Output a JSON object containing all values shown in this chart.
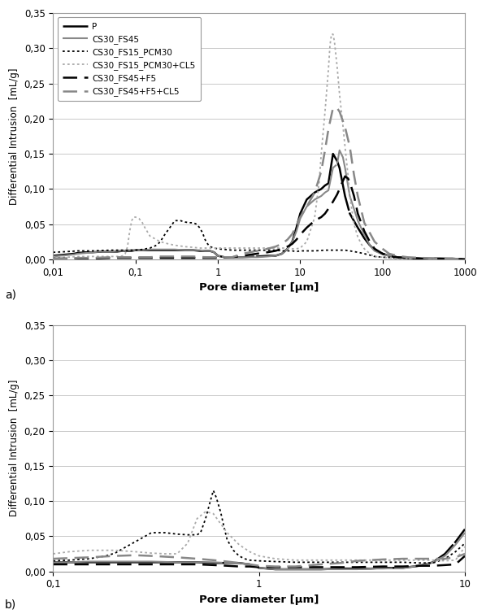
{
  "ylabel": "Differential Intrusion  [mL/g]",
  "xlabel": "Pore diameter [µm]",
  "ylim": [
    0.0,
    0.35
  ],
  "yticks": [
    0.0,
    0.05,
    0.1,
    0.15,
    0.2,
    0.25,
    0.3,
    0.35
  ],
  "ytick_labels": [
    "0,00",
    "0,05",
    "0,10",
    "0,15",
    "0,20",
    "0,25",
    "0,30",
    "0,35"
  ],
  "series_labels": [
    "P",
    "CS30_FS45",
    "CS30_FS15_PCM30",
    "CS30_FS15_PCM30+CL5",
    "CS30_FS45+F5",
    "CS30_FS45+F5+CL5"
  ],
  "plot_a": {
    "xlim": [
      0.01,
      1000
    ],
    "xlabel_ticks": [
      0.01,
      0.1,
      1,
      10,
      100,
      1000
    ],
    "xlabel_tick_labels": [
      "0,01",
      "0,1",
      "1",
      "10",
      "100",
      "1000"
    ],
    "curves": {
      "P": {
        "x": [
          0.01,
          0.012,
          0.015,
          0.018,
          0.02,
          0.025,
          0.03,
          0.04,
          0.05,
          0.06,
          0.07,
          0.08,
          0.09,
          0.1,
          0.12,
          0.15,
          0.2,
          0.25,
          0.3,
          0.4,
          0.5,
          0.6,
          0.7,
          0.8,
          0.9,
          1.0,
          1.2,
          1.5,
          2.0,
          3.0,
          4.0,
          5.0,
          6.0,
          7.0,
          8.0,
          9.0,
          10.0,
          12.0,
          15.0,
          18.0,
          20.0,
          22.0,
          25.0,
          28.0,
          30.0,
          35.0,
          40.0,
          50.0,
          60.0,
          70.0,
          80.0,
          100.0,
          120.0,
          150.0,
          200.0,
          300.0,
          500.0,
          700.0,
          1000.0
        ],
        "y": [
          0.005,
          0.006,
          0.007,
          0.008,
          0.009,
          0.01,
          0.01,
          0.011,
          0.011,
          0.011,
          0.012,
          0.012,
          0.012,
          0.013,
          0.013,
          0.013,
          0.013,
          0.013,
          0.013,
          0.013,
          0.013,
          0.012,
          0.012,
          0.012,
          0.01,
          0.005,
          0.003,
          0.003,
          0.003,
          0.004,
          0.005,
          0.005,
          0.008,
          0.015,
          0.025,
          0.045,
          0.065,
          0.085,
          0.095,
          0.1,
          0.105,
          0.108,
          0.15,
          0.14,
          0.13,
          0.09,
          0.065,
          0.045,
          0.03,
          0.02,
          0.013,
          0.008,
          0.005,
          0.003,
          0.002,
          0.001,
          0.001,
          0.001,
          0.0
        ]
      },
      "CS30_FS45": {
        "x": [
          0.01,
          0.012,
          0.015,
          0.018,
          0.02,
          0.025,
          0.03,
          0.04,
          0.05,
          0.06,
          0.07,
          0.08,
          0.09,
          0.1,
          0.12,
          0.15,
          0.2,
          0.25,
          0.3,
          0.4,
          0.5,
          0.6,
          0.7,
          0.8,
          0.9,
          1.0,
          1.2,
          1.5,
          2.0,
          3.0,
          4.0,
          5.0,
          6.0,
          7.0,
          8.0,
          9.0,
          10.0,
          12.0,
          15.0,
          18.0,
          20.0,
          22.0,
          25.0,
          28.0,
          30.0,
          33.0,
          35.0,
          40.0,
          50.0,
          60.0,
          70.0,
          80.0,
          100.0,
          150.0,
          200.0,
          300.0,
          500.0,
          700.0,
          1000.0
        ],
        "y": [
          0.004,
          0.005,
          0.006,
          0.007,
          0.008,
          0.009,
          0.01,
          0.011,
          0.011,
          0.012,
          0.012,
          0.013,
          0.013,
          0.013,
          0.013,
          0.014,
          0.014,
          0.014,
          0.014,
          0.013,
          0.013,
          0.013,
          0.012,
          0.012,
          0.01,
          0.005,
          0.003,
          0.003,
          0.003,
          0.003,
          0.004,
          0.005,
          0.008,
          0.015,
          0.025,
          0.04,
          0.058,
          0.075,
          0.085,
          0.09,
          0.095,
          0.098,
          0.13,
          0.135,
          0.155,
          0.145,
          0.13,
          0.09,
          0.055,
          0.035,
          0.02,
          0.012,
          0.007,
          0.003,
          0.002,
          0.001,
          0.001,
          0.0,
          0.0
        ]
      },
      "CS30_FS15_PCM30": {
        "x": [
          0.01,
          0.015,
          0.02,
          0.03,
          0.05,
          0.07,
          0.1,
          0.12,
          0.15,
          0.18,
          0.2,
          0.22,
          0.25,
          0.28,
          0.3,
          0.35,
          0.4,
          0.45,
          0.5,
          0.55,
          0.6,
          0.65,
          0.7,
          0.75,
          0.8,
          0.9,
          1.0,
          1.2,
          1.5,
          2.0,
          2.5,
          3.0,
          4.0,
          5.0,
          6.0,
          7.0,
          8.0,
          9.0,
          10.0,
          12.0,
          15.0,
          20.0,
          25.0,
          30.0,
          35.0,
          40.0,
          50.0,
          60.0,
          70.0,
          80.0,
          100.0,
          150.0,
          300.0,
          500.0,
          1000.0
        ],
        "y": [
          0.01,
          0.011,
          0.012,
          0.012,
          0.013,
          0.013,
          0.013,
          0.014,
          0.016,
          0.02,
          0.025,
          0.033,
          0.042,
          0.05,
          0.055,
          0.055,
          0.053,
          0.052,
          0.052,
          0.05,
          0.045,
          0.038,
          0.028,
          0.022,
          0.018,
          0.016,
          0.015,
          0.014,
          0.013,
          0.013,
          0.013,
          0.013,
          0.013,
          0.013,
          0.012,
          0.012,
          0.012,
          0.011,
          0.012,
          0.012,
          0.012,
          0.013,
          0.013,
          0.013,
          0.013,
          0.012,
          0.01,
          0.008,
          0.006,
          0.004,
          0.003,
          0.002,
          0.001,
          0.001,
          0.0
        ]
      },
      "CS30_FS15_PCM30+CL5": {
        "x": [
          0.01,
          0.015,
          0.02,
          0.03,
          0.05,
          0.065,
          0.07,
          0.075,
          0.08,
          0.085,
          0.09,
          0.095,
          0.1,
          0.11,
          0.12,
          0.13,
          0.15,
          0.2,
          0.25,
          0.3,
          0.4,
          0.5,
          0.6,
          0.7,
          0.8,
          1.0,
          1.5,
          2.0,
          2.5,
          3.0,
          4.0,
          5.0,
          6.0,
          7.0,
          8.0,
          9.0,
          10.0,
          12.0,
          15.0,
          17.0,
          18.0,
          20.0,
          22.0,
          23.0,
          24.0,
          25.0,
          26.0,
          28.0,
          30.0,
          33.0,
          35.0,
          38.0,
          40.0,
          43.0,
          45.0,
          50.0,
          55.0,
          60.0,
          70.0,
          80.0,
          100.0,
          120.0,
          150.0,
          200.0,
          300.0,
          500.0,
          700.0,
          1000.0
        ],
        "y": [
          0.003,
          0.003,
          0.004,
          0.004,
          0.004,
          0.004,
          0.005,
          0.008,
          0.018,
          0.04,
          0.055,
          0.06,
          0.06,
          0.058,
          0.053,
          0.045,
          0.033,
          0.025,
          0.022,
          0.02,
          0.018,
          0.017,
          0.016,
          0.016,
          0.016,
          0.016,
          0.016,
          0.016,
          0.016,
          0.016,
          0.016,
          0.016,
          0.016,
          0.016,
          0.015,
          0.015,
          0.016,
          0.025,
          0.06,
          0.11,
          0.15,
          0.21,
          0.27,
          0.305,
          0.32,
          0.32,
          0.31,
          0.275,
          0.235,
          0.19,
          0.16,
          0.12,
          0.09,
          0.065,
          0.05,
          0.032,
          0.022,
          0.015,
          0.008,
          0.004,
          0.003,
          0.002,
          0.001,
          0.001,
          0.001,
          0.001,
          0.001,
          0.0
        ]
      },
      "CS30_FS45+F5": {
        "x": [
          0.01,
          0.015,
          0.02,
          0.03,
          0.05,
          0.07,
          0.1,
          0.15,
          0.2,
          0.3,
          0.5,
          0.7,
          1.0,
          1.5,
          2.0,
          3.0,
          4.0,
          5.0,
          6.0,
          7.0,
          8.0,
          9.0,
          10.0,
          12.0,
          15.0,
          18.0,
          20.0,
          22.0,
          25.0,
          28.0,
          30.0,
          32.0,
          35.0,
          38.0,
          40.0,
          45.0,
          50.0,
          60.0,
          70.0,
          80.0,
          100.0,
          120.0,
          150.0,
          200.0,
          300.0,
          500.0,
          1000.0
        ],
        "y": [
          0.001,
          0.001,
          0.001,
          0.001,
          0.002,
          0.002,
          0.002,
          0.002,
          0.002,
          0.002,
          0.002,
          0.002,
          0.002,
          0.003,
          0.005,
          0.008,
          0.01,
          0.012,
          0.015,
          0.018,
          0.022,
          0.028,
          0.035,
          0.045,
          0.055,
          0.06,
          0.065,
          0.072,
          0.082,
          0.092,
          0.1,
          0.108,
          0.118,
          0.115,
          0.11,
          0.09,
          0.065,
          0.04,
          0.025,
          0.015,
          0.008,
          0.005,
          0.003,
          0.002,
          0.001,
          0.001,
          0.0
        ]
      },
      "CS30_FS45+F5+CL5": {
        "x": [
          0.01,
          0.015,
          0.02,
          0.03,
          0.05,
          0.07,
          0.1,
          0.15,
          0.2,
          0.3,
          0.5,
          0.7,
          1.0,
          1.5,
          2.0,
          3.0,
          4.0,
          5.0,
          6.0,
          7.0,
          8.0,
          9.0,
          10.0,
          12.0,
          15.0,
          18.0,
          20.0,
          22.0,
          25.0,
          28.0,
          30.0,
          35.0,
          40.0,
          45.0,
          50.0,
          60.0,
          80.0,
          100.0,
          120.0,
          150.0,
          200.0,
          300.0,
          500.0,
          700.0,
          1000.0
        ],
        "y": [
          0.001,
          0.001,
          0.002,
          0.002,
          0.003,
          0.003,
          0.003,
          0.003,
          0.004,
          0.004,
          0.004,
          0.003,
          0.003,
          0.003,
          0.008,
          0.012,
          0.015,
          0.018,
          0.022,
          0.028,
          0.036,
          0.048,
          0.06,
          0.075,
          0.095,
          0.125,
          0.155,
          0.185,
          0.215,
          0.215,
          0.21,
          0.188,
          0.16,
          0.12,
          0.09,
          0.052,
          0.025,
          0.015,
          0.008,
          0.005,
          0.003,
          0.002,
          0.001,
          0.001,
          0.0
        ]
      }
    }
  },
  "plot_b": {
    "xlim": [
      0.1,
      10
    ],
    "xlabel_ticks": [
      0.1,
      1,
      10
    ],
    "xlabel_tick_labels": [
      "0,1",
      "1",
      "10"
    ],
    "curves": {
      "P": {
        "x": [
          0.1,
          0.12,
          0.15,
          0.2,
          0.25,
          0.3,
          0.4,
          0.5,
          0.6,
          0.7,
          0.8,
          0.9,
          1.0,
          1.2,
          1.5,
          2.0,
          2.5,
          3.0,
          3.5,
          4.0,
          5.0,
          6.0,
          7.0,
          8.0,
          9.0,
          10.0
        ],
        "y": [
          0.013,
          0.013,
          0.013,
          0.013,
          0.013,
          0.013,
          0.013,
          0.013,
          0.012,
          0.012,
          0.012,
          0.01,
          0.005,
          0.003,
          0.003,
          0.003,
          0.004,
          0.004,
          0.004,
          0.005,
          0.005,
          0.008,
          0.013,
          0.025,
          0.042,
          0.06
        ]
      },
      "CS30_FS45": {
        "x": [
          0.1,
          0.12,
          0.15,
          0.2,
          0.25,
          0.3,
          0.4,
          0.5,
          0.6,
          0.7,
          0.8,
          0.9,
          1.0,
          1.2,
          1.5,
          2.0,
          2.5,
          3.0,
          3.5,
          4.0,
          5.0,
          6.0,
          7.0,
          8.0,
          9.0,
          10.0
        ],
        "y": [
          0.013,
          0.013,
          0.014,
          0.014,
          0.014,
          0.014,
          0.013,
          0.013,
          0.013,
          0.012,
          0.012,
          0.01,
          0.005,
          0.003,
          0.003,
          0.003,
          0.003,
          0.003,
          0.004,
          0.004,
          0.005,
          0.008,
          0.013,
          0.022,
          0.038,
          0.055
        ]
      },
      "CS30_FS15_PCM30": {
        "x": [
          0.1,
          0.12,
          0.15,
          0.18,
          0.2,
          0.22,
          0.25,
          0.28,
          0.3,
          0.35,
          0.4,
          0.45,
          0.5,
          0.52,
          0.55,
          0.58,
          0.6,
          0.62,
          0.65,
          0.68,
          0.7,
          0.75,
          0.8,
          0.85,
          0.9,
          1.0,
          1.2,
          1.5,
          2.0,
          2.5,
          3.0,
          3.5,
          4.0,
          5.0,
          6.0,
          7.0,
          8.0,
          9.0,
          10.0
        ],
        "y": [
          0.015,
          0.016,
          0.018,
          0.022,
          0.026,
          0.033,
          0.042,
          0.05,
          0.055,
          0.055,
          0.053,
          0.052,
          0.052,
          0.055,
          0.075,
          0.1,
          0.115,
          0.105,
          0.085,
          0.06,
          0.045,
          0.03,
          0.022,
          0.018,
          0.016,
          0.015,
          0.014,
          0.013,
          0.013,
          0.013,
          0.013,
          0.013,
          0.013,
          0.013,
          0.012,
          0.012,
          0.018,
          0.028,
          0.04
        ]
      },
      "CS30_FS15_PCM30+CL5": {
        "x": [
          0.1,
          0.12,
          0.15,
          0.2,
          0.25,
          0.3,
          0.35,
          0.4,
          0.45,
          0.5,
          0.55,
          0.6,
          0.7,
          0.8,
          0.9,
          1.0,
          1.2,
          1.5,
          2.0,
          2.5,
          3.0,
          3.5,
          4.0,
          5.0,
          6.0,
          7.0,
          8.0,
          9.0,
          10.0
        ],
        "y": [
          0.025,
          0.028,
          0.03,
          0.03,
          0.028,
          0.026,
          0.025,
          0.025,
          0.04,
          0.075,
          0.085,
          0.082,
          0.055,
          0.038,
          0.028,
          0.022,
          0.018,
          0.016,
          0.016,
          0.016,
          0.016,
          0.016,
          0.016,
          0.016,
          0.016,
          0.016,
          0.015,
          0.016,
          0.035
        ]
      },
      "CS30_FS45+F5": {
        "x": [
          0.1,
          0.15,
          0.2,
          0.3,
          0.4,
          0.5,
          0.6,
          0.7,
          0.8,
          0.9,
          1.0,
          1.2,
          1.5,
          2.0,
          3.0,
          4.0,
          5.0,
          6.0,
          7.0,
          8.0,
          9.0,
          10.0
        ],
        "y": [
          0.01,
          0.01,
          0.01,
          0.01,
          0.01,
          0.01,
          0.009,
          0.008,
          0.007,
          0.007,
          0.006,
          0.006,
          0.006,
          0.006,
          0.006,
          0.007,
          0.007,
          0.008,
          0.008,
          0.009,
          0.01,
          0.022
        ]
      },
      "CS30_FS45+F5+CL5": {
        "x": [
          0.1,
          0.15,
          0.2,
          0.25,
          0.3,
          0.4,
          0.5,
          0.6,
          0.7,
          0.8,
          0.9,
          1.0,
          1.2,
          1.5,
          2.0,
          2.5,
          3.0,
          4.0,
          5.0,
          6.0,
          7.0,
          8.0,
          9.0,
          10.0
        ],
        "y": [
          0.018,
          0.02,
          0.022,
          0.023,
          0.022,
          0.02,
          0.018,
          0.016,
          0.014,
          0.012,
          0.01,
          0.008,
          0.007,
          0.007,
          0.01,
          0.012,
          0.015,
          0.017,
          0.018,
          0.018,
          0.018,
          0.018,
          0.02,
          0.025
        ]
      }
    }
  },
  "background_color": "#ffffff",
  "grid_color": "#c8c8c8"
}
